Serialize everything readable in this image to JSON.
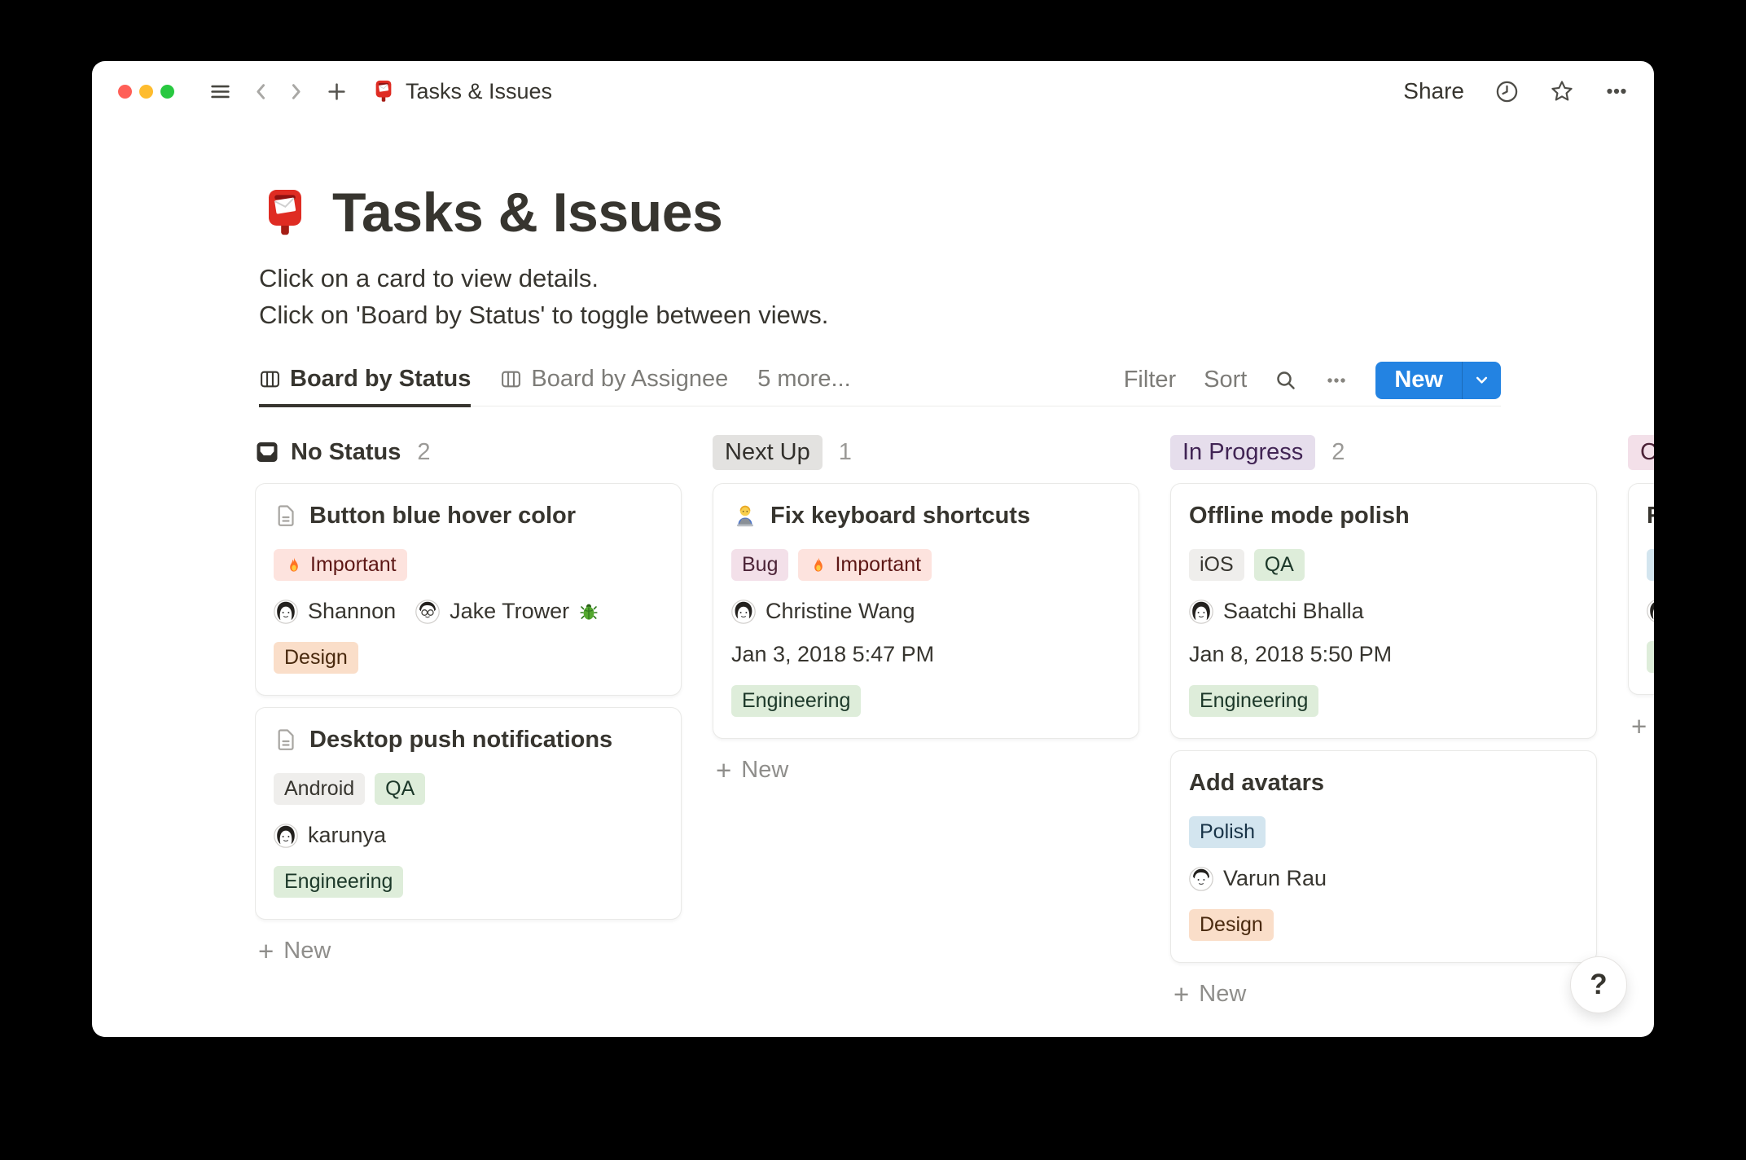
{
  "colors": {
    "accent_blue": "#2383E2",
    "tag_palette": {
      "red": {
        "bg": "#FDE3DE",
        "text": "#5D1715"
      },
      "orange": {
        "bg": "#FADEC9",
        "text": "#49290E"
      },
      "green": {
        "bg": "#DEEDDA",
        "text": "#1C3829"
      },
      "lightgray": {
        "bg": "#EFEEEC",
        "text": "#37352F"
      },
      "gray": {
        "bg": "#E3E2E0",
        "text": "#32302C"
      },
      "purple": {
        "bg": "#E6DEEC",
        "text": "#412454"
      },
      "pink": {
        "bg": "#F3E0E9",
        "text": "#4C2337"
      },
      "blue": {
        "bg": "#D3E5EF",
        "text": "#183347"
      }
    }
  },
  "titlebar": {
    "document_title": "Tasks & Issues",
    "share_label": "Share"
  },
  "page": {
    "title": "Tasks & Issues",
    "description_line1": "Click on a card to view details.",
    "description_line2": "Click on 'Board by Status' to toggle between views."
  },
  "views": {
    "tabs": [
      {
        "label": "Board by Status",
        "active": true
      },
      {
        "label": "Board by Assignee",
        "active": false
      },
      {
        "label": "5 more...",
        "active": false
      }
    ],
    "toolbar": {
      "filter_label": "Filter",
      "sort_label": "Sort",
      "new_label": "New"
    }
  },
  "board": {
    "columns": [
      {
        "header": {
          "style": "plain",
          "icon": "inbox-icon",
          "label": "No Status",
          "count": "2"
        },
        "cards": [
          {
            "icon": "page-icon",
            "title": "Button blue hover color",
            "rows": [
              {
                "type": "tags",
                "tags": [
                  {
                    "label": "Important",
                    "color": "red",
                    "icon": "flame-icon"
                  }
                ]
              },
              {
                "type": "people",
                "people": [
                  {
                    "name": "Shannon",
                    "avatar": "avatar-woman-long-hair"
                  },
                  {
                    "name": "Jake Trower",
                    "avatar": "avatar-man-glasses",
                    "suffix_icon": "beetle-icon"
                  }
                ]
              },
              {
                "type": "tags",
                "tags": [
                  {
                    "label": "Design",
                    "color": "orange"
                  }
                ]
              }
            ]
          },
          {
            "icon": "page-icon",
            "title": "Desktop push notifications",
            "rows": [
              {
                "type": "tags",
                "tags": [
                  {
                    "label": "Android",
                    "color": "lightgray"
                  },
                  {
                    "label": "QA",
                    "color": "green"
                  }
                ]
              },
              {
                "type": "people",
                "people": [
                  {
                    "name": "karunya",
                    "avatar": "avatar-woman-long-hair"
                  }
                ]
              },
              {
                "type": "tags",
                "tags": [
                  {
                    "label": "Engineering",
                    "color": "green"
                  }
                ]
              }
            ]
          }
        ],
        "new_button_label": "New"
      },
      {
        "header": {
          "style": "badge",
          "badge_color": "gray",
          "label": "Next Up",
          "count": "1"
        },
        "cards": [
          {
            "icon": "technologist-icon",
            "title": "Fix keyboard shortcuts",
            "rows": [
              {
                "type": "tags",
                "tags": [
                  {
                    "label": "Bug",
                    "color": "pink"
                  },
                  {
                    "label": "Important",
                    "color": "red",
                    "icon": "flame-icon"
                  }
                ]
              },
              {
                "type": "people",
                "people": [
                  {
                    "name": "Christine Wang",
                    "avatar": "avatar-woman-bob"
                  }
                ]
              },
              {
                "type": "date",
                "value": "Jan 3, 2018 5:47 PM"
              },
              {
                "type": "tags",
                "tags": [
                  {
                    "label": "Engineering",
                    "color": "green"
                  }
                ]
              }
            ]
          }
        ],
        "new_button_label": "New"
      },
      {
        "header": {
          "style": "badge",
          "badge_color": "purple",
          "label": "In Progress",
          "count": "2"
        },
        "cards": [
          {
            "title": "Offline mode polish",
            "rows": [
              {
                "type": "tags",
                "tags": [
                  {
                    "label": "iOS",
                    "color": "lightgray"
                  },
                  {
                    "label": "QA",
                    "color": "green"
                  }
                ]
              },
              {
                "type": "people",
                "people": [
                  {
                    "name": "Saatchi Bhalla",
                    "avatar": "avatar-woman-long-hair"
                  }
                ]
              },
              {
                "type": "date",
                "value": "Jan 8, 2018 5:50 PM"
              },
              {
                "type": "tags",
                "tags": [
                  {
                    "label": "Engineering",
                    "color": "green"
                  }
                ]
              }
            ]
          },
          {
            "title": "Add avatars",
            "rows": [
              {
                "type": "tags",
                "tags": [
                  {
                    "label": "Polish",
                    "color": "blue"
                  }
                ]
              },
              {
                "type": "people",
                "people": [
                  {
                    "name": "Varun Rau",
                    "avatar": "avatar-man-short-hair"
                  }
                ]
              },
              {
                "type": "tags",
                "tags": [
                  {
                    "label": "Design",
                    "color": "orange"
                  }
                ]
              }
            ]
          }
        ],
        "new_button_label": "New"
      },
      {
        "truncated": true,
        "header": {
          "style": "badge",
          "badge_color": "pink",
          "label": "C"
        },
        "cards": [
          {
            "title": "Re",
            "rows": [
              {
                "type": "tags",
                "tags": [
                  {
                    "label": "P",
                    "color": "blue"
                  }
                ]
              },
              {
                "type": "people",
                "people": [
                  {
                    "name": "",
                    "avatar": "avatar-woman-long-hair"
                  }
                ]
              },
              {
                "type": "tags",
                "tags": [
                  {
                    "label": "E",
                    "color": "green"
                  }
                ]
              }
            ]
          }
        ],
        "new_button_label": "New"
      }
    ]
  },
  "help_button_label": "?"
}
